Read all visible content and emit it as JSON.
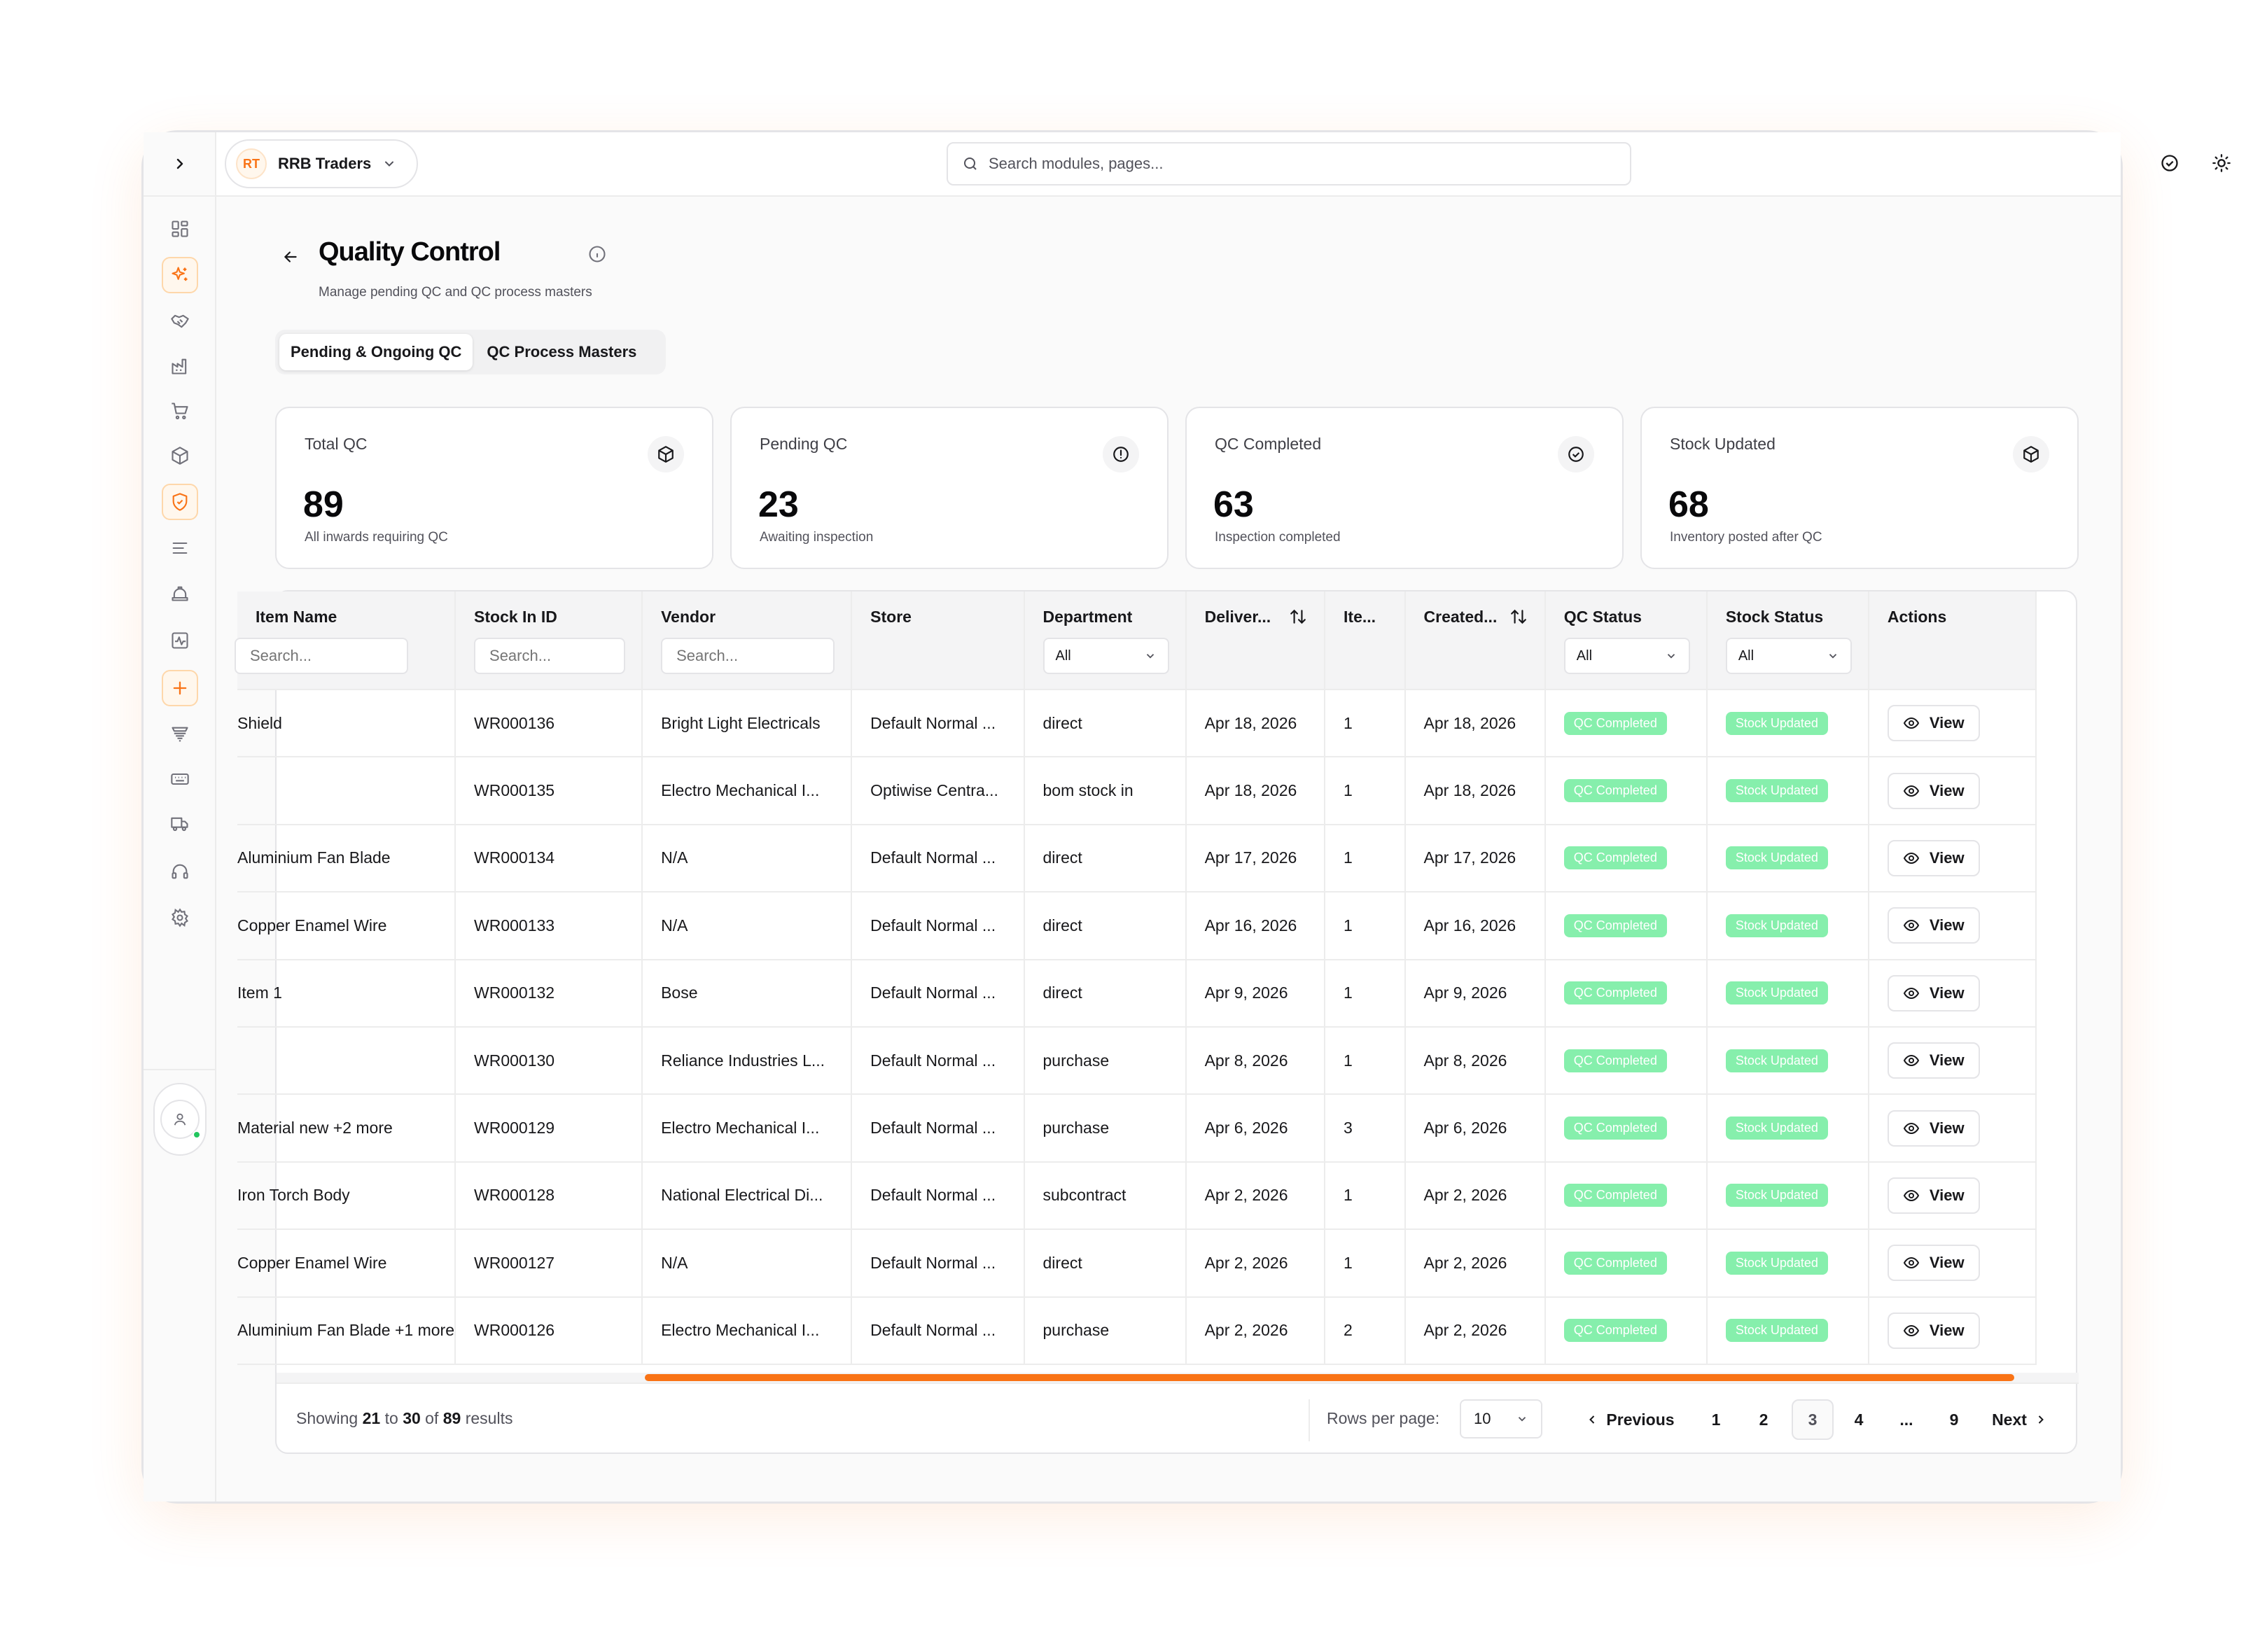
{
  "app": {
    "company_initials": "RT",
    "company_name": "RRB Traders",
    "search_placeholder": "Search modules, pages...",
    "accent_color": "#f97316"
  },
  "sidebar": {
    "items": [
      {
        "icon": "dashboard-icon"
      },
      {
        "icon": "sparkles-icon",
        "active": true
      },
      {
        "icon": "handshake-icon"
      },
      {
        "icon": "factory-icon"
      },
      {
        "icon": "cart-icon"
      },
      {
        "icon": "package-icon"
      },
      {
        "icon": "shield-check-icon",
        "active": true
      },
      {
        "icon": "list-icon"
      },
      {
        "icon": "hard-hat-icon"
      },
      {
        "icon": "activity-icon"
      },
      {
        "icon": "plus-icon"
      },
      {
        "icon": "conveyor-icon"
      },
      {
        "icon": "keyboard-icon"
      },
      {
        "icon": "truck-icon"
      },
      {
        "icon": "headset-icon"
      },
      {
        "icon": "settings-icon"
      }
    ]
  },
  "page": {
    "title": "Quality Control",
    "subtitle": "Manage pending QC and QC process masters",
    "tabs": [
      "Pending & Ongoing QC",
      "QC Process Masters"
    ],
    "active_tab": 0
  },
  "stats": [
    {
      "label": "Total QC",
      "value": "89",
      "desc": "All inwards requiring QC",
      "icon": "package-icon"
    },
    {
      "label": "Pending QC",
      "value": "23",
      "desc": "Awaiting inspection",
      "icon": "alert-circle-icon"
    },
    {
      "label": "QC Completed",
      "value": "63",
      "desc": "Inspection completed",
      "icon": "check-circle-icon"
    },
    {
      "label": "Stock Updated",
      "value": "68",
      "desc": "Inventory posted after QC",
      "icon": "package-icon"
    }
  ],
  "table": {
    "columns": {
      "name": "Item Name",
      "stock_in": "Stock In ID",
      "vendor": "Vendor",
      "store": "Store",
      "department": "Department",
      "delivery": "Deliver...",
      "items": "Ite...",
      "created": "Created...",
      "qc_status": "QC Status",
      "stock_status": "Stock Status",
      "actions": "Actions"
    },
    "filters": {
      "name_search": "Search...",
      "stock_in_search": "Search...",
      "vendor_search": "Search...",
      "department": "All",
      "qc_status": "All",
      "stock_status": "All"
    },
    "view_label": "View",
    "rows": [
      {
        "name": "Shield",
        "stock_in": "WR000136",
        "vendor": "Bright Light Electricals",
        "store": "Default Normal ...",
        "department": "direct",
        "delivery": "Apr 18, 2026",
        "items": "1",
        "created": "Apr 18, 2026",
        "qc_status": "QC Completed",
        "stock_status": "Stock Updated"
      },
      {
        "name": "",
        "stock_in": "WR000135",
        "vendor": "Electro Mechanical I...",
        "store": "Optiwise Centra...",
        "department": "bom stock in",
        "delivery": "Apr 18, 2026",
        "items": "1",
        "created": "Apr 18, 2026",
        "qc_status": "QC Completed",
        "stock_status": "Stock Updated"
      },
      {
        "name": "Aluminium Fan Blade",
        "stock_in": "WR000134",
        "vendor": "N/A",
        "store": "Default Normal ...",
        "department": "direct",
        "delivery": "Apr 17, 2026",
        "items": "1",
        "created": "Apr 17, 2026",
        "qc_status": "QC Completed",
        "stock_status": "Stock Updated"
      },
      {
        "name": "Copper Enamel Wire",
        "stock_in": "WR000133",
        "vendor": "N/A",
        "store": "Default Normal ...",
        "department": "direct",
        "delivery": "Apr 16, 2026",
        "items": "1",
        "created": "Apr 16, 2026",
        "qc_status": "QC Completed",
        "stock_status": "Stock Updated"
      },
      {
        "name": "Item 1",
        "stock_in": "WR000132",
        "vendor": "Bose",
        "store": "Default Normal ...",
        "department": "direct",
        "delivery": "Apr 9, 2026",
        "items": "1",
        "created": "Apr 9, 2026",
        "qc_status": "QC Completed",
        "stock_status": "Stock Updated"
      },
      {
        "name": "",
        "stock_in": "WR000130",
        "vendor": "Reliance Industries L...",
        "store": "Default Normal ...",
        "department": "purchase",
        "delivery": "Apr 8, 2026",
        "items": "1",
        "created": "Apr 8, 2026",
        "qc_status": "QC Completed",
        "stock_status": "Stock Updated"
      },
      {
        "name": "Material new +2 more",
        "stock_in": "WR000129",
        "vendor": "Electro Mechanical I...",
        "store": "Default Normal ...",
        "department": "purchase",
        "delivery": "Apr 6, 2026",
        "items": "3",
        "created": "Apr 6, 2026",
        "qc_status": "QC Completed",
        "stock_status": "Stock Updated"
      },
      {
        "name": "Iron Torch Body",
        "stock_in": "WR000128",
        "vendor": "National Electrical Di...",
        "store": "Default Normal ...",
        "department": "subcontract",
        "delivery": "Apr 2, 2026",
        "items": "1",
        "created": "Apr 2, 2026",
        "qc_status": "QC Completed",
        "stock_status": "Stock Updated"
      },
      {
        "name": "Copper Enamel Wire",
        "stock_in": "WR000127",
        "vendor": "N/A",
        "store": "Default Normal ...",
        "department": "direct",
        "delivery": "Apr 2, 2026",
        "items": "1",
        "created": "Apr 2, 2026",
        "qc_status": "QC Completed",
        "stock_status": "Stock Updated"
      },
      {
        "name": "Aluminium Fan Blade +1 more",
        "stock_in": "WR000126",
        "vendor": "Electro Mechanical I...",
        "store": "Default Normal ...",
        "department": "purchase",
        "delivery": "Apr 2, 2026",
        "items": "2",
        "created": "Apr 2, 2026",
        "qc_status": "QC Completed",
        "stock_status": "Stock Updated"
      }
    ]
  },
  "pagination": {
    "showing_prefix": "Showing",
    "from": "21",
    "to_word": "to",
    "to": "30",
    "of_word": "of",
    "total": "89",
    "results_word": "results",
    "rows_per_page_label": "Rows per page:",
    "rows_per_page": "10",
    "previous": "Previous",
    "next": "Next",
    "pages": [
      "1",
      "2",
      "3",
      "4",
      "...",
      "9"
    ],
    "current_page": "3"
  }
}
